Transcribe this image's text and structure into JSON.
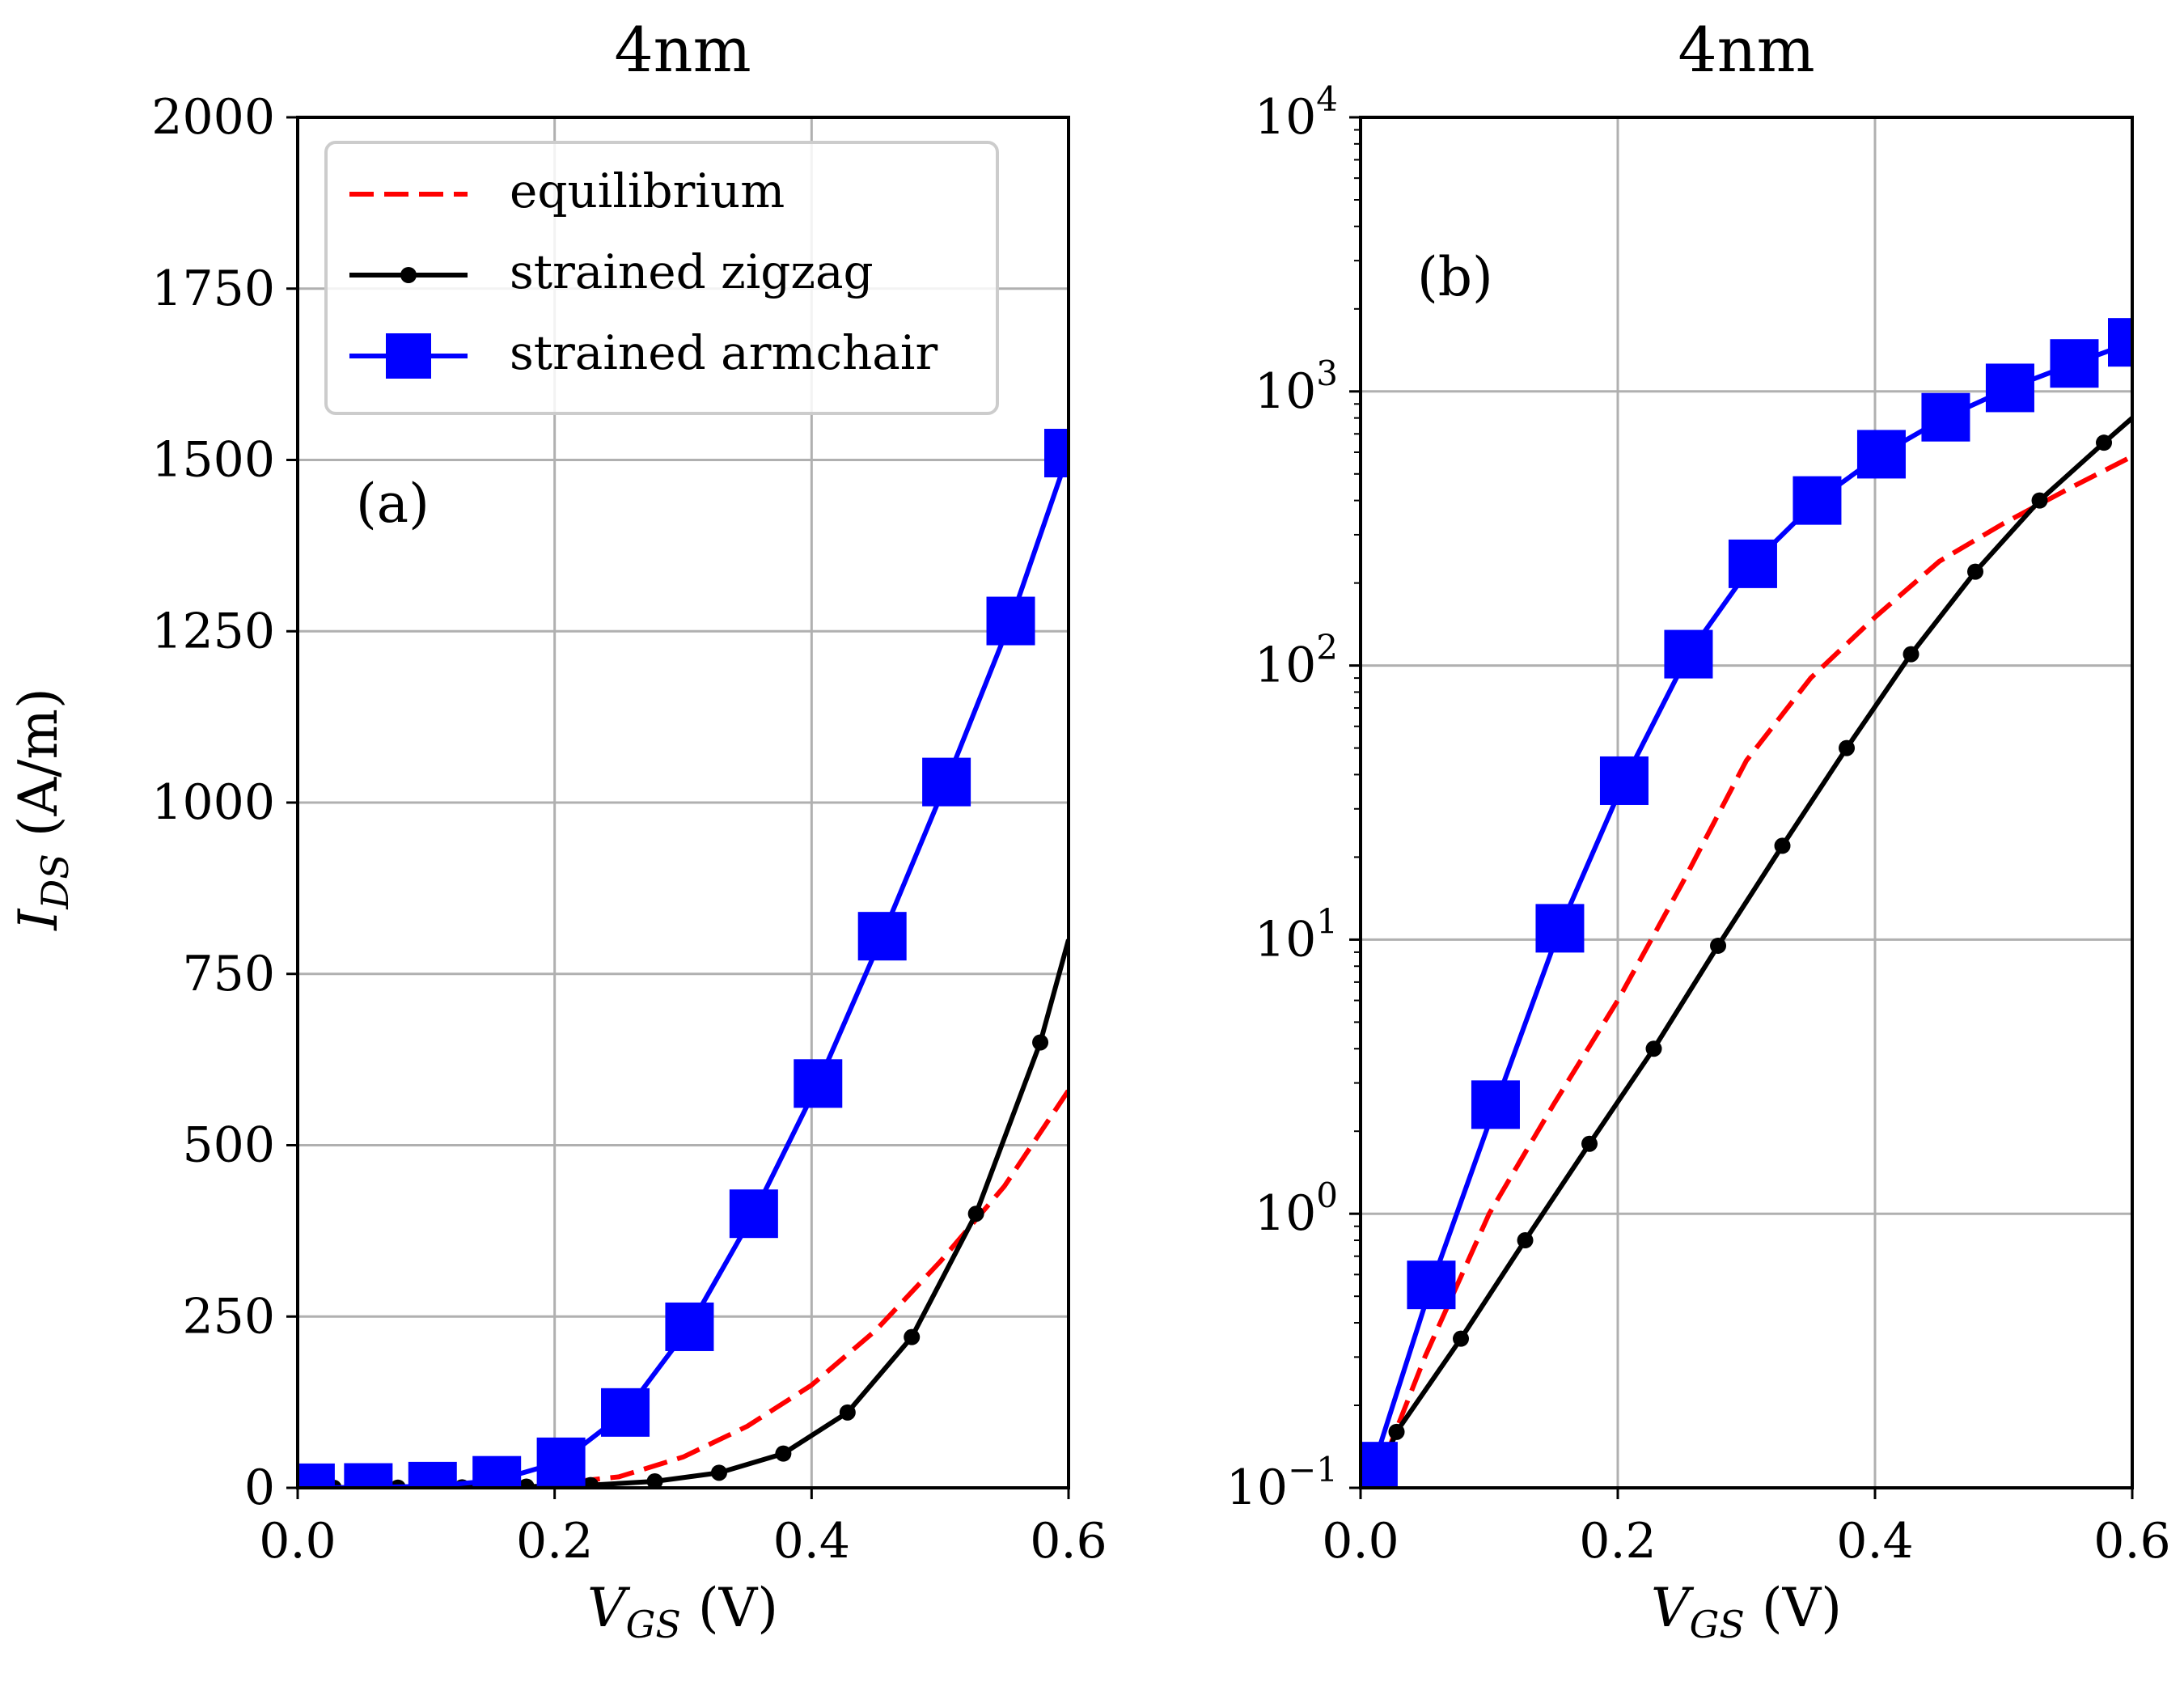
{
  "figure": {
    "ylabel_main": "I",
    "ylabel_sub": "DS",
    "ylabel_unit": " (A/m)",
    "xlabel_main": "V",
    "xlabel_sub": "GS",
    "xlabel_unit": " (V)"
  },
  "legend": {
    "entries": [
      "equilibrium",
      "strained zigzag",
      "strained armchair"
    ],
    "colors": [
      "#ff0000",
      "#000000",
      "#0000ff"
    ]
  },
  "chart_data": [
    {
      "type": "line",
      "title": "4nm",
      "annotation": "(a)",
      "yscale": "linear",
      "xlim": [
        0,
        0.6
      ],
      "ylim": [
        0,
        2000
      ],
      "xticks": [
        0.0,
        0.2,
        0.4,
        0.6
      ],
      "xtick_labels": [
        "0.0",
        "0.2",
        "0.4",
        "0.6"
      ],
      "yticks": [
        0,
        250,
        500,
        750,
        1000,
        1250,
        1500,
        1750,
        2000
      ],
      "ytick_labels": [
        "0",
        "250",
        "500",
        "750",
        "1000",
        "1250",
        "1500",
        "1750",
        "2000"
      ],
      "grid": true,
      "legend_position": "upper-left",
      "series": [
        {
          "name": "equilibrium",
          "color": "#ff0000",
          "style": "dashed",
          "marker": "none",
          "x": [
            0.0,
            0.05,
            0.1,
            0.15,
            0.2,
            0.25,
            0.3,
            0.35,
            0.4,
            0.45,
            0.5,
            0.55,
            0.6
          ],
          "y": [
            0.1,
            0.5,
            1.5,
            3,
            6,
            16,
            45,
            90,
            150,
            230,
            330,
            440,
            580
          ]
        },
        {
          "name": "strained zigzag",
          "color": "#000000",
          "style": "solid",
          "marker": "circle",
          "x": [
            0.01,
            0.028,
            0.078,
            0.128,
            0.178,
            0.228,
            0.278,
            0.328,
            0.378,
            0.428,
            0.478,
            0.528,
            0.578,
            0.6
          ],
          "y": [
            0.1,
            0.16,
            0.35,
            0.8,
            1.8,
            4,
            9.5,
            22,
            50,
            110,
            220,
            400,
            650,
            800
          ]
        },
        {
          "name": "strained armchair",
          "color": "#0000ff",
          "style": "solid",
          "marker": "square",
          "x": [
            0.01,
            0.055,
            0.105,
            0.155,
            0.205,
            0.255,
            0.305,
            0.355,
            0.405,
            0.455,
            0.505,
            0.555,
            0.6
          ],
          "y": [
            0.12,
            0.55,
            2.5,
            11,
            38,
            110,
            235,
            400,
            590,
            805,
            1030,
            1265,
            1510
          ]
        }
      ]
    },
    {
      "type": "line",
      "title": "4nm",
      "annotation": "(b)",
      "yscale": "log",
      "xlim": [
        0,
        0.6
      ],
      "ylim": [
        0.1,
        10000
      ],
      "xticks": [
        0.0,
        0.2,
        0.4,
        0.6
      ],
      "xtick_labels": [
        "0.0",
        "0.2",
        "0.4",
        "0.6"
      ],
      "yticks": [
        0.1,
        1,
        10,
        100,
        1000,
        10000
      ],
      "ytick_labels": [
        {
          "base": "10",
          "exp": "−1"
        },
        {
          "base": "10",
          "exp": "0"
        },
        {
          "base": "10",
          "exp": "1"
        },
        {
          "base": "10",
          "exp": "2"
        },
        {
          "base": "10",
          "exp": "3"
        },
        {
          "base": "10",
          "exp": "4"
        }
      ],
      "grid": true,
      "series": [
        {
          "name": "equilibrium",
          "color": "#ff0000",
          "style": "dashed",
          "marker": "none",
          "x": [
            0.01,
            0.05,
            0.1,
            0.15,
            0.2,
            0.25,
            0.3,
            0.35,
            0.4,
            0.45,
            0.5,
            0.55,
            0.6
          ],
          "y": [
            0.1,
            0.3,
            1.0,
            2.5,
            6,
            16,
            45,
            90,
            150,
            240,
            330,
            440,
            580
          ]
        },
        {
          "name": "strained zigzag",
          "color": "#000000",
          "style": "solid",
          "marker": "circle",
          "x": [
            0.01,
            0.028,
            0.078,
            0.128,
            0.178,
            0.228,
            0.278,
            0.328,
            0.378,
            0.428,
            0.478,
            0.528,
            0.578,
            0.6
          ],
          "y": [
            0.1,
            0.16,
            0.35,
            0.8,
            1.8,
            4,
            9.5,
            22,
            50,
            110,
            220,
            400,
            650,
            800
          ]
        },
        {
          "name": "strained armchair",
          "color": "#0000ff",
          "style": "solid",
          "marker": "square",
          "x": [
            0.01,
            0.055,
            0.105,
            0.155,
            0.205,
            0.255,
            0.305,
            0.355,
            0.405,
            0.455,
            0.505,
            0.555,
            0.6
          ],
          "y": [
            0.12,
            0.55,
            2.5,
            11,
            38,
            110,
            235,
            400,
            590,
            805,
            1030,
            1265,
            1510
          ]
        }
      ]
    }
  ]
}
